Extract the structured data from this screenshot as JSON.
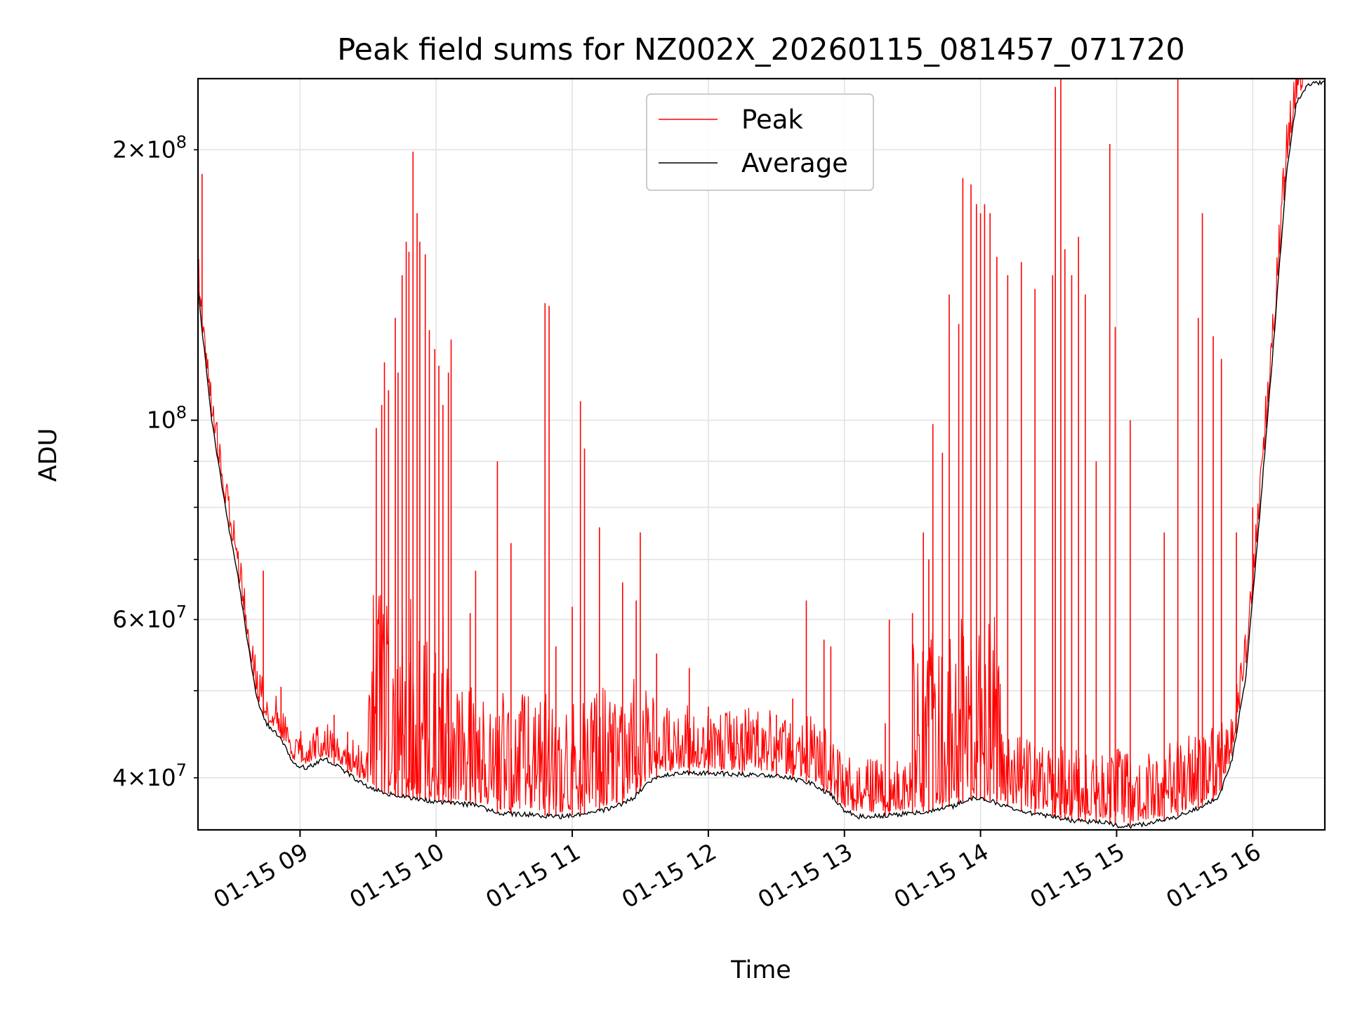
{
  "chart_data": {
    "type": "line",
    "title": "Peak field sums for NZ002X_20260115_081457_071720",
    "xlabel": "Time",
    "ylabel": "ADU",
    "yscale": "log",
    "ylim": [
      35000000,
      240000000
    ],
    "xlim_hours": [
      8.25,
      16.53
    ],
    "grid": true,
    "legend_position": "top-center",
    "x_ticks": [
      {
        "hour": 9,
        "label": "01-15 09"
      },
      {
        "hour": 10,
        "label": "01-15 10"
      },
      {
        "hour": 11,
        "label": "01-15 11"
      },
      {
        "hour": 12,
        "label": "01-15 12"
      },
      {
        "hour": 13,
        "label": "01-15 13"
      },
      {
        "hour": 14,
        "label": "01-15 14"
      },
      {
        "hour": 15,
        "label": "01-15 15"
      },
      {
        "hour": 16,
        "label": "01-15 16"
      }
    ],
    "y_ticks_major": [
      {
        "value": 100000000,
        "mantissa": "",
        "exponent": "8"
      }
    ],
    "y_ticks_minor_labeled": [
      {
        "value": 40000000,
        "mantissa": "4",
        "exponent": "7"
      },
      {
        "value": 60000000,
        "mantissa": "6",
        "exponent": "7"
      },
      {
        "value": 200000000,
        "mantissa": "2",
        "exponent": "8"
      }
    ],
    "y_ticks_minor_unlabeled": [
      50000000,
      70000000,
      80000000,
      90000000
    ],
    "series": [
      {
        "name": "Average",
        "color": "#000000",
        "points": [
          [
            8.25,
            140000000
          ],
          [
            8.35,
            100000000
          ],
          [
            8.45,
            80000000
          ],
          [
            8.55,
            66000000
          ],
          [
            8.62,
            56000000
          ],
          [
            8.68,
            49000000
          ],
          [
            8.75,
            46000000
          ],
          [
            8.85,
            44500000
          ],
          [
            8.95,
            41500000
          ],
          [
            9.05,
            41000000
          ],
          [
            9.18,
            42000000
          ],
          [
            9.3,
            41000000
          ],
          [
            9.5,
            39000000
          ],
          [
            9.7,
            38200000
          ],
          [
            9.9,
            37800000
          ],
          [
            10.1,
            37500000
          ],
          [
            10.3,
            37300000
          ],
          [
            10.45,
            36500000
          ],
          [
            10.7,
            36400000
          ],
          [
            10.9,
            36200000
          ],
          [
            11.1,
            36500000
          ],
          [
            11.3,
            37000000
          ],
          [
            11.45,
            38000000
          ],
          [
            11.6,
            40000000
          ],
          [
            11.8,
            40500000
          ],
          [
            12.0,
            40500000
          ],
          [
            12.3,
            40300000
          ],
          [
            12.55,
            40100000
          ],
          [
            12.75,
            39500000
          ],
          [
            12.9,
            38300000
          ],
          [
            13.0,
            36800000
          ],
          [
            13.1,
            36200000
          ],
          [
            13.3,
            36300000
          ],
          [
            13.6,
            36700000
          ],
          [
            13.8,
            37200000
          ],
          [
            13.95,
            38000000
          ],
          [
            14.1,
            37600000
          ],
          [
            14.3,
            36700000
          ],
          [
            14.5,
            36300000
          ],
          [
            14.7,
            35800000
          ],
          [
            14.9,
            35700000
          ],
          [
            15.05,
            35300000
          ],
          [
            15.2,
            35500000
          ],
          [
            15.4,
            36000000
          ],
          [
            15.6,
            37000000
          ],
          [
            15.75,
            38000000
          ],
          [
            15.85,
            42000000
          ],
          [
            15.95,
            52000000
          ],
          [
            16.05,
            78000000
          ],
          [
            16.15,
            120000000
          ],
          [
            16.25,
            190000000
          ],
          [
            16.32,
            225000000
          ],
          [
            16.4,
            236000000
          ],
          [
            16.53,
            238000000
          ]
        ]
      },
      {
        "name": "Peak",
        "color": "#ff0000",
        "spikes": [
          [
            8.28,
            188000000
          ],
          [
            8.73,
            68000000
          ],
          [
            8.86,
            50500000
          ],
          [
            9.25,
            47000000
          ],
          [
            9.35,
            45000000
          ],
          [
            9.56,
            98000000
          ],
          [
            9.6,
            104000000
          ],
          [
            9.62,
            116000000
          ],
          [
            9.65,
            108000000
          ],
          [
            9.7,
            130000000
          ],
          [
            9.72,
            113000000
          ],
          [
            9.75,
            145000000
          ],
          [
            9.78,
            158000000
          ],
          [
            9.8,
            154000000
          ],
          [
            9.83,
            199000000
          ],
          [
            9.86,
            170000000
          ],
          [
            9.88,
            158000000
          ],
          [
            9.92,
            153000000
          ],
          [
            9.95,
            126000000
          ],
          [
            9.99,
            120000000
          ],
          [
            10.02,
            115000000
          ],
          [
            10.05,
            104000000
          ],
          [
            10.09,
            113000000
          ],
          [
            10.11,
            123000000
          ],
          [
            10.25,
            61000000
          ],
          [
            10.29,
            68000000
          ],
          [
            10.45,
            90000000
          ],
          [
            10.55,
            73000000
          ],
          [
            10.8,
            135000000
          ],
          [
            10.83,
            134000000
          ],
          [
            10.88,
            56000000
          ],
          [
            11.0,
            62000000
          ],
          [
            11.06,
            105000000
          ],
          [
            11.09,
            93000000
          ],
          [
            11.2,
            76000000
          ],
          [
            11.37,
            66000000
          ],
          [
            11.47,
            63000000
          ],
          [
            11.5,
            75000000
          ],
          [
            11.62,
            55000000
          ],
          [
            11.86,
            53000000
          ],
          [
            12.0,
            48000000
          ],
          [
            12.25,
            46000000
          ],
          [
            12.5,
            47000000
          ],
          [
            12.62,
            49000000
          ],
          [
            12.72,
            63000000
          ],
          [
            12.85,
            57000000
          ],
          [
            12.9,
            56000000
          ],
          [
            12.95,
            43000000
          ],
          [
            13.3,
            46000000
          ],
          [
            13.33,
            60000000
          ],
          [
            13.5,
            61000000
          ],
          [
            13.58,
            75000000
          ],
          [
            13.62,
            70000000
          ],
          [
            13.65,
            99000000
          ],
          [
            13.72,
            92000000
          ],
          [
            13.77,
            138000000
          ],
          [
            13.84,
            128000000
          ],
          [
            13.87,
            186000000
          ],
          [
            13.93,
            183000000
          ],
          [
            13.97,
            174000000
          ],
          [
            14.0,
            170000000
          ],
          [
            14.03,
            174000000
          ],
          [
            14.07,
            170000000
          ],
          [
            14.12,
            152000000
          ],
          [
            14.2,
            145000000
          ],
          [
            14.3,
            150000000
          ],
          [
            14.4,
            140000000
          ],
          [
            14.53,
            145000000
          ],
          [
            14.55,
            235000000
          ],
          [
            14.59,
            240000000
          ],
          [
            14.62,
            155000000
          ],
          [
            14.67,
            145000000
          ],
          [
            14.72,
            160000000
          ],
          [
            14.77,
            138000000
          ],
          [
            14.85,
            90000000
          ],
          [
            14.95,
            203000000
          ],
          [
            14.99,
            127000000
          ],
          [
            15.1,
            100000000
          ],
          [
            15.35,
            75000000
          ],
          [
            15.45,
            240000000
          ],
          [
            15.6,
            130000000
          ],
          [
            15.63,
            170000000
          ],
          [
            15.71,
            124000000
          ],
          [
            15.77,
            117000000
          ],
          [
            15.88,
            75000000
          ],
          [
            16.0,
            80000000
          ]
        ]
      }
    ]
  }
}
